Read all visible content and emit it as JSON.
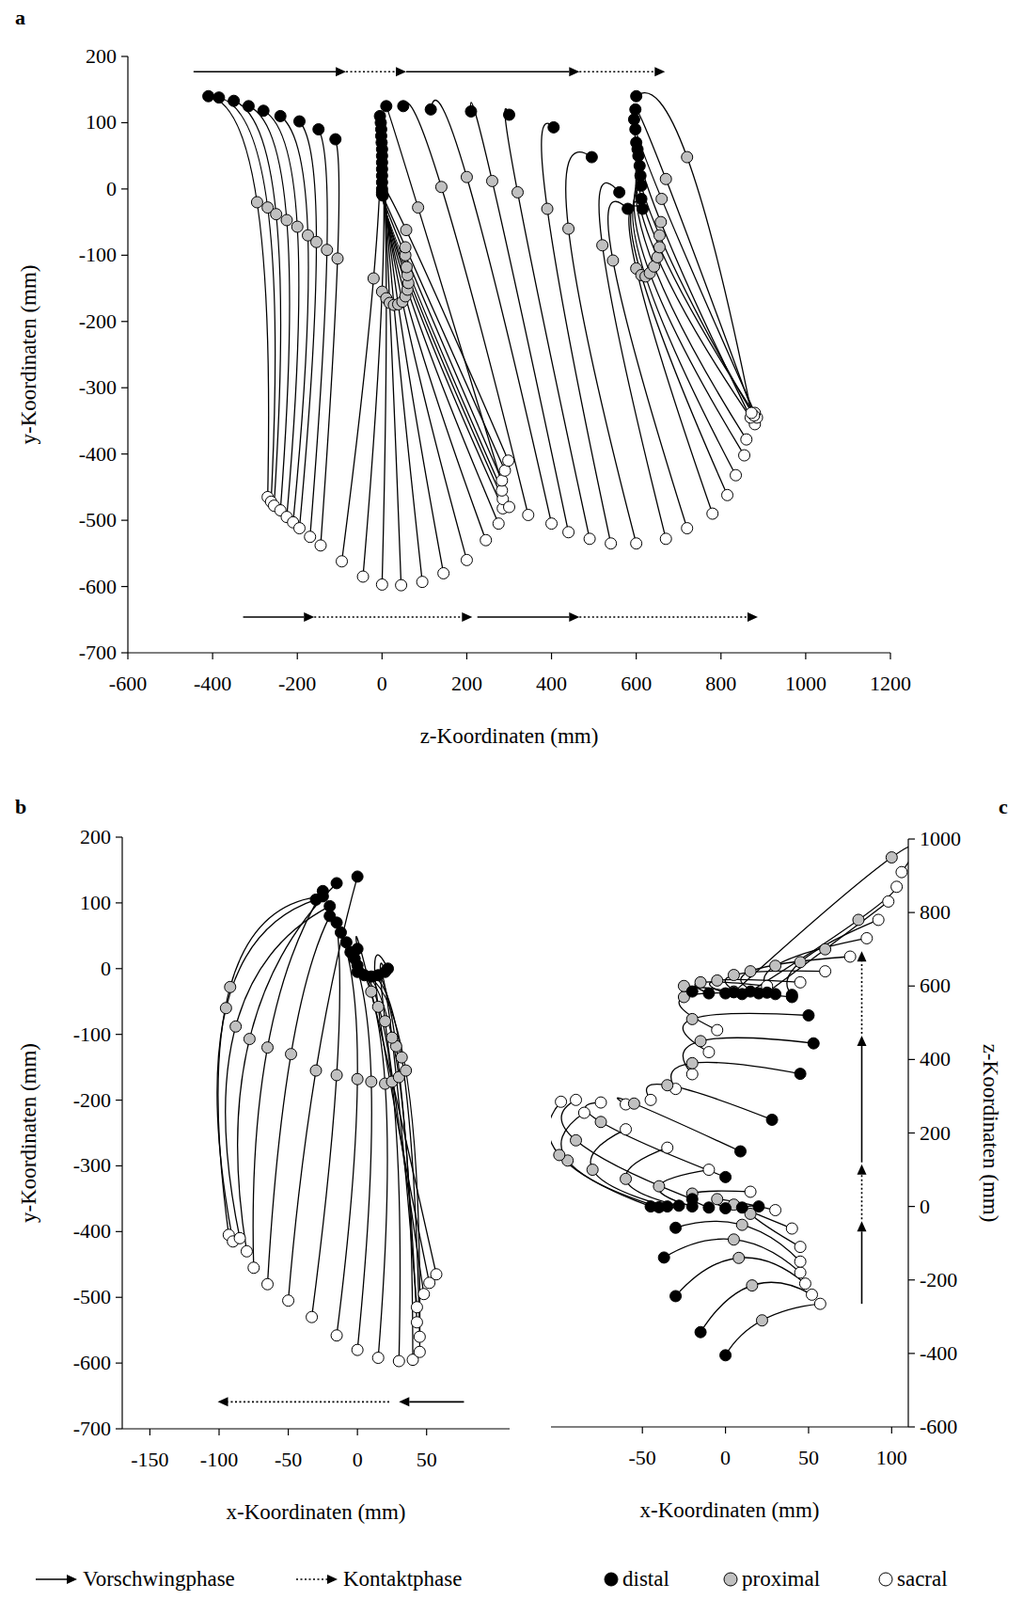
{
  "chart_data": [
    {
      "type": "scatter",
      "panel": "a",
      "x_label": "z-Koordinaten (mm)",
      "y_label": "y-Koordinaten (mm)",
      "xlim": [
        -600,
        1200
      ],
      "xticks": [
        -600,
        -400,
        -200,
        0,
        200,
        400,
        600,
        800,
        1000,
        1200
      ],
      "ylim": [
        -700,
        200
      ],
      "yticks": [
        -700,
        -600,
        -500,
        -400,
        -300,
        -200,
        -100,
        0,
        100,
        200
      ],
      "series": [
        {
          "name": "distal",
          "color": "#000000",
          "marker": "circle",
          "x": [
            -410,
            -385,
            -350,
            -315,
            -280,
            -240,
            -195,
            -150,
            -110,
            -5,
            -3,
            -2,
            -2,
            -1,
            0,
            0,
            0,
            0,
            0,
            0,
            0,
            0,
            0,
            2,
            10,
            50,
            115,
            210,
            300,
            405,
            495,
            560,
            580,
            615,
            612,
            612,
            610,
            608,
            605,
            603,
            600,
            598,
            595,
            598,
            600
          ],
          "values": [
            140,
            138,
            133,
            125,
            118,
            110,
            102,
            90,
            75,
            110,
            100,
            90,
            80,
            70,
            60,
            50,
            40,
            30,
            20,
            10,
            0,
            -5,
            -8,
            -10,
            125,
            125,
            120,
            117,
            112,
            93,
            48,
            -5,
            -30,
            -30,
            -15,
            5,
            20,
            35,
            50,
            60,
            70,
            90,
            105,
            120,
            140
          ]
        },
        {
          "name": "proximal",
          "color": "#c0c0c0",
          "marker": "circle",
          "x": [
            -295,
            -270,
            -250,
            -225,
            -200,
            -175,
            -155,
            -130,
            -105,
            -20,
            0,
            10,
            18,
            28,
            38,
            48,
            55,
            60,
            62,
            60,
            58,
            55,
            55,
            57,
            85,
            140,
            200,
            260,
            320,
            390,
            440,
            520,
            545,
            600,
            612,
            622,
            632,
            642,
            650,
            655,
            655,
            658,
            660,
            670,
            720
          ],
          "values": [
            -20,
            -28,
            -38,
            -47,
            -57,
            -70,
            -80,
            -92,
            -105,
            -135,
            -155,
            -165,
            -172,
            -175,
            -174,
            -170,
            -162,
            -152,
            -142,
            -130,
            -118,
            -100,
            -88,
            -62,
            -28,
            3,
            18,
            12,
            -5,
            -30,
            -60,
            -85,
            -108,
            -120,
            -130,
            -132,
            -127,
            -117,
            -103,
            -88,
            -70,
            -50,
            -15,
            15,
            48
          ]
        },
        {
          "name": "sacral",
          "color": "#ffffff",
          "marker": "circle",
          "x": [
            -270,
            -262,
            -255,
            -240,
            -225,
            -210,
            -195,
            -170,
            -145,
            -95,
            -45,
            0,
            45,
            95,
            145,
            200,
            245,
            275,
            285,
            285,
            283,
            283,
            290,
            298,
            300,
            345,
            400,
            440,
            490,
            540,
            600,
            670,
            720,
            780,
            815,
            835,
            855,
            860,
            880,
            885,
            875,
            870,
            880,
            878,
            872
          ],
          "values": [
            -465,
            -472,
            -478,
            -485,
            -495,
            -503,
            -512,
            -525,
            -538,
            -562,
            -585,
            -597,
            -598,
            -593,
            -580,
            -560,
            -530,
            -505,
            -482,
            -468,
            -455,
            -440,
            -425,
            -410,
            -480,
            -492,
            -505,
            -518,
            -528,
            -535,
            -535,
            -528,
            -512,
            -490,
            -462,
            -432,
            -402,
            -378,
            -355,
            -345,
            -340,
            -345,
            -338,
            -342,
            -338
          ]
        }
      ],
      "arrows": [
        {
          "orientation": "horizontal",
          "at": 177,
          "from": -445,
          "to": -85,
          "line_style": "solid"
        },
        {
          "orientation": "horizontal",
          "at": 177,
          "from": -85,
          "to": 57,
          "line_style": "dotted"
        },
        {
          "orientation": "horizontal",
          "at": 177,
          "from": 57,
          "to": 466,
          "line_style": "solid"
        },
        {
          "orientation": "horizontal",
          "at": 177,
          "from": 466,
          "to": 668,
          "line_style": "dotted"
        },
        {
          "orientation": "horizontal",
          "at": -646,
          "from": -328,
          "to": -160,
          "line_style": "solid"
        },
        {
          "orientation": "horizontal",
          "at": -646,
          "from": -160,
          "to": 213,
          "line_style": "dotted"
        },
        {
          "orientation": "horizontal",
          "at": -646,
          "from": 225,
          "to": 466,
          "line_style": "solid"
        },
        {
          "orientation": "horizontal",
          "at": -646,
          "from": 466,
          "to": 887,
          "line_style": "dotted"
        }
      ]
    },
    {
      "type": "scatter",
      "panel": "b",
      "x_label": "x-Koordinaten (mm)",
      "y_label": "y-Koordinaten (mm)",
      "xlim": [
        -170,
        110
      ],
      "xticks": [
        -150,
        -100,
        -50,
        0,
        50
      ],
      "ylim": [
        -700,
        200
      ],
      "yticks": [
        -700,
        -600,
        -500,
        -400,
        -300,
        -200,
        -100,
        0,
        100,
        200
      ],
      "series": [
        {
          "name": "distal",
          "color": "#000000",
          "marker": "circle",
          "x": [
            -25,
            -30,
            -20,
            -15,
            -25,
            -20,
            0,
            -15,
            -12,
            -8,
            -5,
            -2,
            0,
            0,
            5,
            10,
            15,
            20,
            22,
            0
          ],
          "values": [
            110,
            105,
            95,
            130,
            118,
            80,
            140,
            70,
            55,
            40,
            25,
            15,
            5,
            -5,
            -10,
            -12,
            -10,
            -5,
            0,
            30
          ]
        },
        {
          "name": "proximal",
          "color": "#c0c0c0",
          "marker": "circle",
          "x": [
            -92,
            -95,
            -88,
            -78,
            -65,
            -48,
            -30,
            -15,
            0,
            10,
            20,
            25,
            30,
            35,
            32,
            28,
            25,
            20,
            15,
            10
          ],
          "values": [
            -28,
            -60,
            -88,
            -107,
            -120,
            -130,
            -155,
            -162,
            -168,
            -172,
            -175,
            -172,
            -165,
            -155,
            -135,
            -118,
            -105,
            -80,
            -58,
            -35
          ]
        },
        {
          "name": "sacral",
          "color": "#ffffff",
          "marker": "circle",
          "x": [
            -93,
            -90,
            -85,
            -80,
            -75,
            -65,
            -50,
            -33,
            -15,
            0,
            15,
            30,
            40,
            45,
            45,
            43,
            43,
            48,
            52,
            57
          ],
          "values": [
            -405,
            -415,
            -410,
            -430,
            -455,
            -480,
            -505,
            -530,
            -558,
            -580,
            -592,
            -597,
            -595,
            -583,
            -560,
            -538,
            -515,
            -495,
            -478,
            -465
          ]
        }
      ],
      "arrows": [
        {
          "orientation": "horizontal",
          "at": -659,
          "from": 77,
          "to": 30,
          "line_style": "solid"
        },
        {
          "orientation": "horizontal",
          "at": -659,
          "from": 23,
          "to": -101,
          "line_style": "dotted"
        }
      ]
    },
    {
      "type": "scatter",
      "panel": "c",
      "x_label": "x-Koordinaten (mm)",
      "y_label": "z-Koordinaten (mm)",
      "xlim": [
        -105,
        110
      ],
      "xticks": [
        -50,
        0,
        50,
        100
      ],
      "ylim": [
        -600,
        1000
      ],
      "yticks": [
        -600,
        -400,
        -200,
        0,
        200,
        400,
        600,
        800,
        1000
      ],
      "series": [
        {
          "name": "distal",
          "color": "#000000",
          "marker": "circle",
          "x": [
            0,
            -15,
            -30,
            -37,
            -30,
            20,
            10,
            0,
            -10,
            -20,
            -28,
            -35,
            -40,
            -45,
            -20,
            0,
            9,
            28,
            45,
            53,
            50,
            40,
            -20,
            -10,
            0,
            10,
            20,
            30,
            40,
            25,
            15,
            5
          ],
          "values": [
            -405,
            -342,
            -244,
            -139,
            -58,
            0,
            -3,
            -5,
            -3,
            0,
            2,
            0,
            -2,
            0,
            20,
            80,
            150,
            236,
            361,
            444,
            520,
            570,
            585,
            580,
            580,
            578,
            580,
            578,
            576,
            582,
            585,
            583
          ]
        },
        {
          "name": "proximal",
          "color": "#c0c0c0",
          "marker": "circle",
          "x": [
            22,
            16,
            8,
            5,
            10,
            15,
            5,
            -5,
            -20,
            -40,
            -60,
            -80,
            -95,
            -100,
            -90,
            -75,
            -55,
            -35,
            -20,
            -15,
            -20,
            -25,
            -25,
            -15,
            -5,
            5,
            15,
            30,
            45,
            60,
            80,
            100
          ],
          "values": [
            -310,
            -215,
            -140,
            -90,
            -50,
            -20,
            5,
            20,
            35,
            55,
            75,
            100,
            125,
            140,
            180,
            230,
            280,
            330,
            390,
            450,
            510,
            570,
            600,
            610,
            615,
            630,
            640,
            655,
            665,
            700,
            780,
            950
          ]
        },
        {
          "name": "sacral",
          "color": "#ffffff",
          "marker": "circle",
          "x": [
            57,
            52,
            48,
            45,
            45,
            45,
            40,
            30,
            15,
            -10,
            -35,
            -60,
            -85,
            -99,
            -90,
            -75,
            -60,
            -45,
            -30,
            -20,
            -10,
            -5,
            5,
            25,
            45,
            60,
            75,
            85,
            92,
            98,
            103,
            106
          ],
          "values": [
            -265,
            -240,
            -210,
            -180,
            -150,
            -110,
            -60,
            -10,
            40,
            100,
            160,
            210,
            255,
            285,
            290,
            283,
            278,
            290,
            320,
            360,
            420,
            480,
            585,
            600,
            610,
            640,
            680,
            730,
            780,
            830,
            870,
            910
          ]
        }
      ],
      "arrows": [
        {
          "orientation": "vertical",
          "at": 82,
          "from": -265,
          "to": -40,
          "line_style": "solid"
        },
        {
          "orientation": "vertical",
          "at": 82,
          "from": -35,
          "to": 115,
          "line_style": "dotted"
        },
        {
          "orientation": "vertical",
          "at": 82,
          "from": 120,
          "to": 465,
          "line_style": "solid"
        },
        {
          "orientation": "vertical",
          "at": 82,
          "from": 470,
          "to": 695,
          "line_style": "dotted"
        }
      ]
    }
  ],
  "figure_legend": {
    "legend": "bottom",
    "entries": [
      {
        "name": "Vorschwingphase",
        "line_style": "solid"
      },
      {
        "name": "Kontaktphase",
        "line_style": "dotted"
      },
      {
        "name": "distal",
        "color": "#000000",
        "marker": "circle"
      },
      {
        "name": "proximal",
        "color": "#c0c0c0",
        "marker": "circle"
      },
      {
        "name": "sacral",
        "color": "#ffffff",
        "marker": "circle"
      }
    ]
  }
}
